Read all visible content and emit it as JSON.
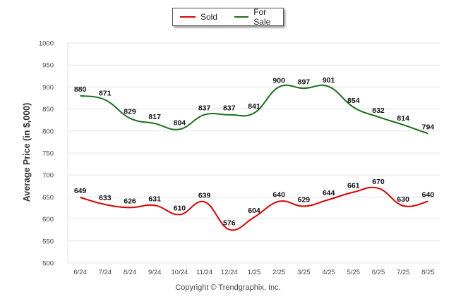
{
  "chart_data": {
    "type": "line",
    "categories": [
      "6/24",
      "7/24",
      "8/24",
      "9/24",
      "10/24",
      "11/24",
      "12/24",
      "1/25",
      "2/25",
      "3/25",
      "4/25",
      "5/25",
      "6/25",
      "7/25",
      "8/25"
    ],
    "series": [
      {
        "name": "Sold",
        "color": "#dd0000",
        "values": [
          649,
          633,
          626,
          631,
          610,
          639,
          576,
          604,
          640,
          629,
          644,
          661,
          670,
          630,
          640
        ]
      },
      {
        "name": "For Sale",
        "color": "#1a6e1a",
        "values": [
          880,
          871,
          829,
          817,
          804,
          837,
          837,
          841,
          900,
          897,
          901,
          854,
          832,
          814,
          794
        ]
      }
    ],
    "ylabel": "Average Price (in $,000)",
    "ylim": [
      500,
      1000
    ],
    "yticks": [
      500,
      550,
      600,
      650,
      700,
      750,
      800,
      850,
      900,
      950,
      1000
    ],
    "grid": true,
    "legend": "top-center"
  },
  "footer": {
    "copyright": "Copyright © Trendgraphix, Inc."
  }
}
